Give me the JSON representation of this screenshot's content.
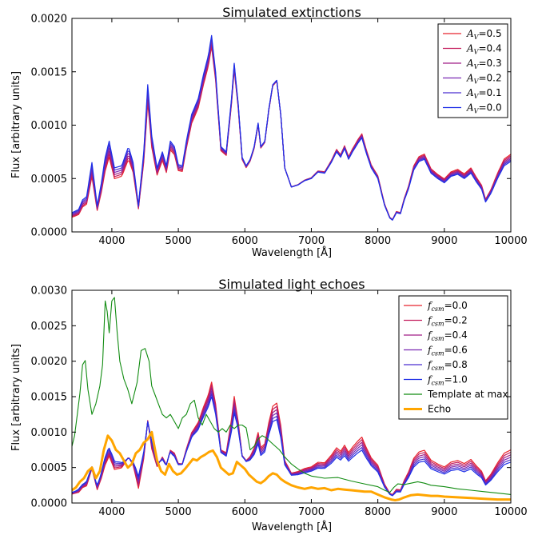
{
  "colors": {
    "A0.5": "#e8242d",
    "A0.4": "#c41e5e",
    "A0.3": "#a01f86",
    "A0.2": "#7a28b2",
    "A0.1": "#4a2ed0",
    "A0.0": "#1f2fe6",
    "template": "#128c12",
    "echo": "#ffa500"
  },
  "chart_data": [
    {
      "type": "line",
      "title": "Simulated extinctions",
      "xlabel": "Wavelength [Å]",
      "ylabel": "Flux [arbitrary units]",
      "xlim": [
        3400,
        10000
      ],
      "ylim": [
        0,
        0.002
      ],
      "xticks": [
        "4000",
        "5000",
        "6000",
        "7000",
        "8000",
        "9000",
        "10000"
      ],
      "yticks": [
        "0.0000",
        "0.0005",
        "0.0010",
        "0.0015",
        "0.0020"
      ],
      "legend_position": "top-right",
      "base_spectrum": {
        "x": [
          3400,
          3500,
          3560,
          3620,
          3700,
          3780,
          3840,
          3900,
          3960,
          4040,
          4150,
          4250,
          4320,
          4400,
          4480,
          4540,
          4600,
          4680,
          4760,
          4820,
          4880,
          4940,
          5000,
          5060,
          5120,
          5200,
          5300,
          5380,
          5450,
          5500,
          5560,
          5640,
          5720,
          5800,
          5840,
          5900,
          5960,
          6020,
          6080,
          6140,
          6200,
          6240,
          6300,
          6360,
          6420,
          6480,
          6540,
          6600,
          6700,
          6800,
          6900,
          7000,
          7100,
          7200,
          7300,
          7380,
          7440,
          7500,
          7560,
          7620,
          7700,
          7760,
          7820,
          7900,
          8000,
          8100,
          8180,
          8220,
          8280,
          8340,
          8400,
          8460,
          8540,
          8620,
          8700,
          8800,
          8900,
          9000,
          9100,
          9200,
          9300,
          9400,
          9480,
          9560,
          9620,
          9700,
          9800,
          9900,
          10000
        ],
        "y": [
          0.00018,
          0.00021,
          0.0003,
          0.00033,
          0.00065,
          0.00025,
          0.00045,
          0.0007,
          0.00085,
          0.0006,
          0.00062,
          0.0008,
          0.00065,
          0.00025,
          0.00075,
          0.00138,
          0.0009,
          0.0006,
          0.00075,
          0.00062,
          0.00085,
          0.0008,
          0.00063,
          0.00062,
          0.00085,
          0.0011,
          0.00125,
          0.00148,
          0.00165,
          0.00184,
          0.0015,
          0.0008,
          0.00075,
          0.00125,
          0.00158,
          0.0012,
          0.0007,
          0.00062,
          0.00068,
          0.0008,
          0.00102,
          0.0008,
          0.00085,
          0.00115,
          0.00138,
          0.00142,
          0.0011,
          0.0006,
          0.00042,
          0.00044,
          0.00048,
          0.0005,
          0.00056,
          0.00055,
          0.00065,
          0.00075,
          0.0007,
          0.00078,
          0.00068,
          0.00075,
          0.00083,
          0.00088,
          0.00075,
          0.0006,
          0.0005,
          0.00025,
          0.00013,
          0.00011,
          0.00018,
          0.00017,
          0.0003,
          0.0004,
          0.00058,
          0.00066,
          0.00068,
          0.00055,
          0.0005,
          0.00046,
          0.00052,
          0.00054,
          0.0005,
          0.00055,
          0.00047,
          0.0004,
          0.00028,
          0.00036,
          0.0005,
          0.00062,
          0.00066
        ]
      },
      "series": [
        {
          "name": "A_V=0.5",
          "label": "=0.5",
          "A_V": 0.5,
          "color": "#e8242d"
        },
        {
          "name": "A_V=0.4",
          "label": "=0.4",
          "A_V": 0.4,
          "color": "#c41e5e"
        },
        {
          "name": "A_V=0.3",
          "label": "=0.3",
          "A_V": 0.3,
          "color": "#a01f86"
        },
        {
          "name": "A_V=0.2",
          "label": "=0.2",
          "A_V": 0.2,
          "color": "#7a28b2"
        },
        {
          "name": "A_V=0.1",
          "label": "=0.1",
          "A_V": 0.1,
          "color": "#4a2ed0"
        },
        {
          "name": "A_V=0.0",
          "label": "=0.0",
          "A_V": 0.0,
          "color": "#1f2fe6"
        }
      ],
      "legend_symbol": "A",
      "legend_subscript": "V"
    },
    {
      "type": "line",
      "title": "Simulated light echoes",
      "xlabel": "Wavelength [Å]",
      "ylabel": "Flux [arbitrary units]",
      "xlim": [
        3400,
        10000
      ],
      "ylim": [
        0,
        0.003
      ],
      "xticks": [
        "4000",
        "5000",
        "6000",
        "7000",
        "8000",
        "9000",
        "10000"
      ],
      "yticks": [
        "0.0000",
        "0.0005",
        "0.0010",
        "0.0015",
        "0.0020",
        "0.0025",
        "0.0030"
      ],
      "legend_position": "top-right",
      "series": [
        {
          "name": "f_csm=0.0",
          "label": "=0.0",
          "f_csm": 0.0,
          "color": "#e8242d"
        },
        {
          "name": "f_csm=0.2",
          "label": "=0.2",
          "f_csm": 0.2,
          "color": "#c41e5e"
        },
        {
          "name": "f_csm=0.4",
          "label": "=0.4",
          "f_csm": 0.4,
          "color": "#a01f86"
        },
        {
          "name": "f_csm=0.6",
          "label": "=0.6",
          "f_csm": 0.6,
          "color": "#7a28b2"
        },
        {
          "name": "f_csm=0.8",
          "label": "=0.8",
          "f_csm": 0.8,
          "color": "#4a2ed0"
        },
        {
          "name": "f_csm=1.0",
          "label": "=1.0",
          "f_csm": 1.0,
          "color": "#1f2fe6"
        },
        {
          "name": "Template at max",
          "label": "Template at max",
          "color": "#128c12",
          "x": [
            3400,
            3440,
            3480,
            3520,
            3560,
            3600,
            3640,
            3700,
            3760,
            3820,
            3860,
            3900,
            3930,
            3960,
            4000,
            4040,
            4080,
            4120,
            4180,
            4240,
            4300,
            4380,
            4440,
            4500,
            4560,
            4600,
            4660,
            4700,
            4760,
            4820,
            4880,
            4940,
            5000,
            5060,
            5120,
            5180,
            5240,
            5300,
            5360,
            5420,
            5480,
            5540,
            5600,
            5660,
            5720,
            5780,
            5840,
            5900,
            5960,
            6020,
            6080,
            6140,
            6200,
            6260,
            6320,
            6400,
            6460,
            6520,
            6600,
            6700,
            6800,
            6900,
            7000,
            7200,
            7400,
            7600,
            7800,
            8000,
            8100,
            8180,
            8240,
            8300,
            8400,
            8500,
            8600,
            8700,
            8800,
            9000,
            9200,
            9400,
            9600,
            9800,
            10000
          ],
          "y": [
            0.0008,
            0.00095,
            0.00125,
            0.00155,
            0.00195,
            0.00201,
            0.0016,
            0.00125,
            0.0014,
            0.00165,
            0.00195,
            0.00285,
            0.0027,
            0.0024,
            0.00285,
            0.0029,
            0.0024,
            0.002,
            0.00175,
            0.0016,
            0.0014,
            0.0017,
            0.00215,
            0.00218,
            0.002,
            0.00165,
            0.0015,
            0.0014,
            0.00125,
            0.0012,
            0.00125,
            0.00115,
            0.00105,
            0.0012,
            0.00125,
            0.0014,
            0.00145,
            0.0012,
            0.0011,
            0.00125,
            0.00115,
            0.00105,
            0.001,
            0.00105,
            0.001,
            0.0011,
            0.00105,
            0.0011,
            0.0011,
            0.00106,
            0.00075,
            0.0008,
            0.0009,
            0.00095,
            0.00092,
            0.00085,
            0.0008,
            0.00075,
            0.00065,
            0.00055,
            0.00048,
            0.00042,
            0.00038,
            0.00035,
            0.00036,
            0.00031,
            0.00027,
            0.00023,
            0.00018,
            0.00015,
            0.00022,
            0.00027,
            0.00026,
            0.00028,
            0.0003,
            0.00028,
            0.00025,
            0.00023,
            0.0002,
            0.00018,
            0.00016,
            0.00014,
            0.00012
          ]
        },
        {
          "name": "Echo",
          "label": "Echo",
          "color": "#ffa500",
          "x": [
            3400,
            3460,
            3520,
            3580,
            3640,
            3700,
            3760,
            3820,
            3880,
            3940,
            4000,
            4060,
            4120,
            4180,
            4240,
            4300,
            4360,
            4420,
            4480,
            4540,
            4600,
            4640,
            4680,
            4740,
            4800,
            4860,
            4920,
            4980,
            5040,
            5100,
            5160,
            5220,
            5280,
            5340,
            5400,
            5460,
            5520,
            5580,
            5640,
            5700,
            5760,
            5820,
            5880,
            5940,
            6000,
            6060,
            6120,
            6180,
            6240,
            6300,
            6360,
            6420,
            6480,
            6540,
            6600,
            6700,
            6800,
            6900,
            7000,
            7100,
            7200,
            7300,
            7400,
            7500,
            7600,
            7700,
            7800,
            7900,
            8000,
            8100,
            8200,
            8260,
            8320,
            8400,
            8500,
            8600,
            8700,
            8800,
            8900,
            9000,
            9200,
            9400,
            9600,
            9800,
            10000
          ],
          "y": [
            0.00018,
            0.00022,
            0.0003,
            0.00035,
            0.00045,
            0.0005,
            0.00035,
            0.00045,
            0.00075,
            0.00095,
            0.00088,
            0.00075,
            0.0007,
            0.0006,
            0.0005,
            0.00055,
            0.0007,
            0.00075,
            0.00085,
            0.0009,
            0.001,
            0.0008,
            0.0006,
            0.00045,
            0.0004,
            0.00055,
            0.00045,
            0.0004,
            0.00042,
            0.00048,
            0.00055,
            0.00062,
            0.0006,
            0.00065,
            0.00068,
            0.00072,
            0.00074,
            0.00065,
            0.0005,
            0.00045,
            0.0004,
            0.00042,
            0.00058,
            0.00053,
            0.00048,
            0.0004,
            0.00035,
            0.0003,
            0.00028,
            0.00032,
            0.00038,
            0.00042,
            0.0004,
            0.00034,
            0.0003,
            0.00025,
            0.00022,
            0.0002,
            0.00022,
            0.0002,
            0.00021,
            0.00018,
            0.0002,
            0.00019,
            0.00018,
            0.00017,
            0.00016,
            0.00016,
            0.00012,
            8e-05,
            5e-05,
            4e-05,
            5e-05,
            8e-05,
            0.00011,
            0.00012,
            0.00011,
            0.0001,
            0.0001,
            9e-05,
            8e-05,
            7e-05,
            6e-05,
            5e-05,
            5e-05
          ]
        }
      ],
      "legend_symbol": "f",
      "legend_subscript": "csm"
    }
  ]
}
